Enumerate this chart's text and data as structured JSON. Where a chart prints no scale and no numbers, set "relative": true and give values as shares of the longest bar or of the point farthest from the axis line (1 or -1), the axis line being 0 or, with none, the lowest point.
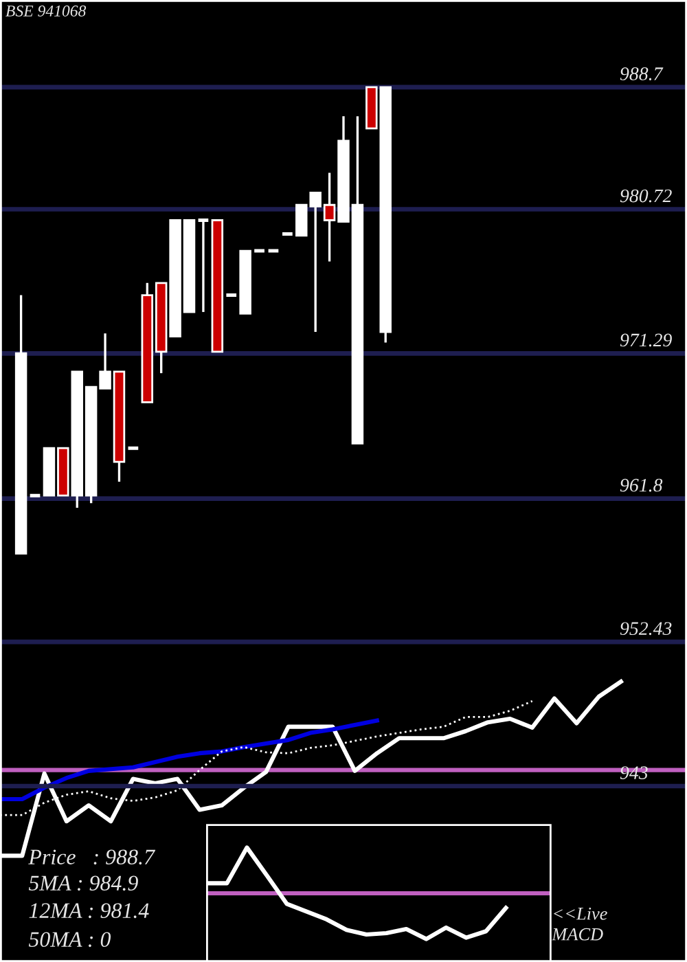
{
  "chart_data": [
    {
      "type": "candlestick",
      "title": "BSE 941068",
      "categories": [
        null,
        null,
        null,
        null,
        null,
        null,
        null,
        null,
        null,
        null,
        null,
        null,
        null,
        null,
        null,
        null,
        null,
        null,
        null,
        null,
        null,
        null,
        null,
        null,
        null,
        null,
        null,
        null,
        null,
        null,
        null,
        null,
        null,
        null,
        null,
        null,
        null,
        null,
        null,
        null,
        null,
        null,
        null,
        null,
        null,
        null,
        null,
        null,
        null
      ],
      "ohlc": [
        null,
        [
          958.2,
          975.1,
          958.2,
          971.3
        ],
        [
          962.0,
          962.0,
          962.0,
          962.0
        ],
        [
          962.0,
          965.1,
          962.0,
          965.1
        ],
        [
          965.1,
          965.1,
          962.0,
          962.0
        ],
        [
          962.0,
          970.1,
          961.2,
          970.1
        ],
        [
          962.0,
          969.1,
          961.5,
          969.1
        ],
        [
          969.0,
          972.6,
          969.0,
          970.1
        ],
        [
          970.1,
          970.1,
          962.9,
          964.2
        ],
        [
          965.1,
          965.1,
          965.1,
          965.1
        ],
        [
          975.1,
          975.9,
          968.1,
          968.1
        ],
        [
          975.9,
          975.9,
          970.0,
          971.4
        ],
        [
          972.4,
          980.0,
          972.4,
          980.0
        ],
        [
          974.0,
          980.0,
          974.0,
          980.0
        ],
        [
          980.0,
          980.0,
          974.0,
          980.0
        ],
        [
          980.0,
          980.0,
          971.4,
          971.4
        ],
        [
          975.1,
          975.1,
          975.1,
          975.1
        ],
        [
          973.9,
          978.0,
          973.9,
          978.0
        ],
        [
          978.0,
          978.0,
          978.0,
          978.0
        ],
        [
          978.0,
          978.0,
          978.0,
          978.0
        ],
        [
          979.1,
          979.1,
          979.1,
          979.1
        ],
        [
          979.0,
          981.0,
          979.0,
          981.0
        ],
        [
          980.9,
          981.8,
          972.7,
          981.8
        ],
        [
          981.0,
          983.1,
          977.3,
          980.0
        ],
        [
          979.9,
          986.8,
          979.9,
          985.2
        ],
        [
          965.4,
          986.8,
          965.4,
          981.0
        ],
        [
          988.7,
          988.7,
          986.0,
          986.0
        ],
        [
          972.7,
          988.7,
          972.0,
          988.7
        ],
        null,
        null,
        null,
        null,
        null,
        null,
        null,
        null,
        null,
        null,
        null,
        null,
        null,
        null,
        null,
        null,
        null,
        null,
        null,
        null,
        null
      ],
      "colors": [
        null,
        "#ffffff",
        "#ffffff",
        "#ffffff",
        "#cc0000",
        "#ffffff",
        "#ffffff",
        "#ffffff",
        "#cc0000",
        "#ffffff",
        "#cc0000",
        "#cc0000",
        "#ffffff",
        "#ffffff",
        "#ffffff",
        "#cc0000",
        "#ffffff",
        "#ffffff",
        "#ffffff",
        "#ffffff",
        "#ffffff",
        "#ffffff",
        "#ffffff",
        "#cc0000",
        "#ffffff",
        "#ffffff",
        "#cc0000",
        "#ffffff",
        null,
        null,
        null,
        null,
        null,
        null,
        null,
        null,
        null,
        null,
        null,
        null,
        null,
        null,
        null,
        null,
        null,
        null,
        null,
        null,
        null
      ],
      "ylim": [
        931.5,
        994.4
      ],
      "yticks": [
        988.7,
        980.72,
        971.29,
        961.8,
        952.43,
        943
      ],
      "grid": "y",
      "tick_labels": "y"
    },
    {
      "type": "line",
      "relative": true,
      "categories": [
        null,
        null,
        null,
        null,
        null,
        null,
        null,
        null,
        null,
        null,
        null,
        null,
        null,
        null,
        null,
        null,
        null,
        null,
        null,
        null,
        null,
        null,
        null,
        null,
        null,
        null,
        null,
        null,
        null
      ],
      "series": [
        {
          "color": "#ffffff",
          "line_style": "solid",
          "values": [
            -0.97,
            -0.97,
            -0.04,
            -0.58,
            -0.4,
            -0.58,
            -0.1,
            -0.15,
            -0.1,
            -0.45,
            -0.4,
            -0.2,
            -0.02,
            0.49,
            0.49,
            0.49,
            -0.01,
            0.19,
            0.36,
            0.36,
            0.36,
            0.44,
            0.54,
            0.58,
            0.48,
            0.81,
            0.53,
            0.83,
            1.0
          ]
        },
        {
          "color": "#0000e0",
          "line_style": "solid",
          "values": [
            -0.33,
            -0.33,
            -0.2,
            -0.09,
            -0.01,
            0.01,
            0.03,
            0.09,
            0.15,
            0.19,
            0.21,
            0.26,
            0.3,
            0.34,
            0.42,
            0.46,
            0.51,
            0.56,
            null,
            null,
            null,
            null,
            null,
            null,
            null,
            null,
            null,
            null,
            null
          ]
        },
        {
          "color": "#ffffff",
          "line_style": "dotted",
          "values": [
            -0.51,
            -0.51,
            -0.37,
            -0.28,
            -0.24,
            -0.32,
            -0.35,
            -0.31,
            -0.23,
            0.0,
            0.21,
            0.26,
            0.2,
            0.19,
            0.25,
            0.28,
            0.33,
            0.38,
            0.42,
            0.46,
            0.49,
            0.6,
            0.6,
            0.67,
            0.78,
            null,
            null,
            null,
            null
          ]
        }
      ],
      "ref_lines": [
        {
          "axis": "y",
          "value": 0,
          "color": "#c060c0"
        }
      ],
      "annotations": [
        "Price   : 988.7",
        "5MA : 984.9",
        "12MA : 981.4",
        "50MA : 0"
      ],
      "tick_labels": false
    },
    {
      "type": "line",
      "relative": true,
      "categories": [
        null,
        null,
        null,
        null,
        null,
        null,
        null,
        null,
        null,
        null,
        null,
        null,
        null,
        null,
        null,
        null
      ],
      "series": [
        {
          "color": "#ffffff",
          "values": [
            0.22,
            0.22,
            1.0,
            0.39,
            -0.23,
            -0.4,
            -0.57,
            -0.8,
            -0.9,
            -0.87,
            -0.78,
            -1.0,
            -0.75,
            -0.97,
            -0.83,
            -0.32
          ]
        }
      ],
      "ref_lines": [
        {
          "axis": "y",
          "value": 0,
          "color": "#c060c0"
        }
      ],
      "annotations": [
        "<<Live",
        "MACD"
      ],
      "tick_labels": false
    }
  ]
}
